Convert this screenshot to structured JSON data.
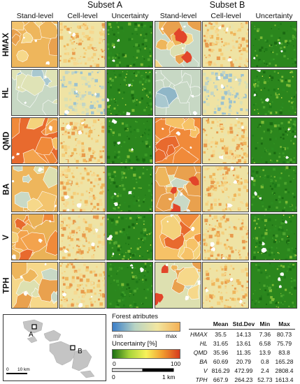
{
  "subsets": [
    "Subset A",
    "Subset B"
  ],
  "columns": [
    "Stand-level",
    "Cell-level",
    "Uncertainty",
    "Stand-level",
    "Cell-level",
    "Uncertainty"
  ],
  "rows": [
    "HMAX",
    "HL",
    "QMD",
    "BA",
    "V",
    "TPH"
  ],
  "legend": {
    "forest_title": "Forest atributes",
    "forest_min": "min",
    "forest_max": "max",
    "forest_colors": [
      "#3a7ec9",
      "#b8d4c4",
      "#f2e6a0",
      "#f4b156"
    ],
    "uncert_title": "Uncertainty [%]",
    "uncert_min": "0",
    "uncert_max": "100",
    "uncert_colors": [
      "#1a6e13",
      "#a8d43a",
      "#f7f25a",
      "#f19a2e",
      "#d63a1e"
    ]
  },
  "overview_map": {
    "label_a": "A",
    "label_b": "B",
    "scale_0": "0",
    "scale_10": "10 km"
  },
  "panel_scale": {
    "zero": "0",
    "one": "1 km"
  },
  "stats": {
    "headers": [
      "",
      "Mean",
      "Std.Dev",
      "Min",
      "Max"
    ],
    "rows": [
      [
        "HMAX",
        "35.5",
        "14.13",
        "7.36",
        "80.73"
      ],
      [
        "HL",
        "31.65",
        "13.61",
        "6.58",
        "75.79"
      ],
      [
        "QMD",
        "35.96",
        "11.35",
        "13.9",
        "83.8"
      ],
      [
        "BA",
        "60.69",
        "20.79",
        "0.8",
        "165.28"
      ],
      [
        "V",
        "816.29",
        "472.99",
        "2.4",
        "2808.4"
      ],
      [
        "TPH",
        "667.9",
        "264.23",
        "52.73",
        "1613.4"
      ]
    ]
  }
}
